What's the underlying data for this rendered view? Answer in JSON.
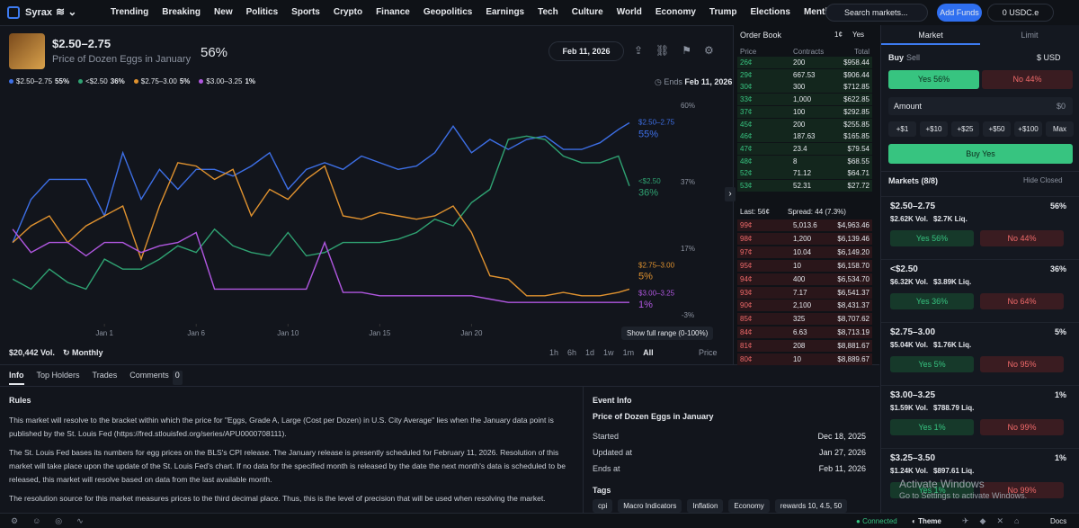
{
  "nav": {
    "brand": "Syrax",
    "items": [
      "Trending",
      "Breaking",
      "New",
      "Politics",
      "Sports",
      "Crypto",
      "Finance",
      "Geopolitics",
      "Earnings",
      "Tech",
      "Culture",
      "World",
      "Economy",
      "Trump",
      "Elections",
      "Mentions"
    ],
    "search": "Search markets...",
    "add_funds": "Add Funds",
    "balance": "0 USDC.e"
  },
  "market": {
    "title": "$2.50–2.75",
    "subtitle": "Price of Dozen Eggs in January",
    "probability": "56%",
    "date": "Feb 11, 2026",
    "ends_label": "Ends",
    "ends_date": "Feb 11, 2026"
  },
  "chart_data": {
    "type": "line",
    "x": [
      0,
      1,
      2,
      3,
      4,
      5,
      6,
      7,
      8,
      9,
      10,
      11,
      12,
      13,
      14,
      15,
      16,
      17,
      18,
      19,
      20,
      21,
      22,
      23,
      24,
      25,
      26,
      27,
      28,
      29,
      30,
      31,
      32,
      33,
      33.6
    ],
    "xlim": [
      -0.2,
      33.6
    ],
    "xticks": [
      {
        "value": 5,
        "label": "Jan 1"
      },
      {
        "value": 10,
        "label": "Jan 6"
      },
      {
        "value": 15,
        "label": "Jan 10"
      },
      {
        "value": 20,
        "label": "Jan 15"
      },
      {
        "value": 25,
        "label": "Jan 20"
      }
    ],
    "ylim": [
      -3,
      60
    ],
    "yticks": [
      {
        "value": 60,
        "label": "60%"
      },
      {
        "value": 37,
        "label": "37%"
      },
      {
        "value": 17,
        "label": "17%"
      },
      {
        "value": -3,
        "label": "-3%"
      }
    ],
    "grid": false,
    "series": [
      {
        "name": "$2.50–2.75",
        "color": "#3d6fe6",
        "end_label": "55%",
        "values": [
          19,
          32,
          38,
          38,
          38,
          27,
          46,
          32,
          41,
          35,
          41,
          41,
          39,
          42,
          46,
          35,
          41,
          43,
          41,
          45,
          43,
          41,
          42,
          46,
          54,
          46,
          50,
          47,
          50,
          51,
          47,
          47,
          49,
          53,
          55
        ]
      },
      {
        "name": "<$2.50",
        "color": "#2fa272",
        "end_label": "36%",
        "values": [
          8,
          5,
          11,
          7,
          5,
          14,
          11,
          11,
          14,
          18,
          16,
          23,
          18,
          16,
          15,
          22,
          15,
          16,
          19,
          19,
          19,
          20,
          22,
          26,
          24,
          31,
          35,
          50,
          51,
          50,
          45,
          43,
          43,
          45,
          36
        ]
      },
      {
        "name": "$2.75–3.00",
        "color": "#e0922f",
        "end_label": "5%",
        "values": [
          19,
          24,
          27,
          19,
          24,
          27,
          30,
          14,
          30,
          43,
          42,
          38,
          41,
          27,
          35,
          32,
          38,
          42,
          27,
          26,
          28,
          27,
          26,
          27,
          30,
          22,
          9,
          8,
          3,
          3,
          4,
          3,
          3,
          4,
          5
        ]
      },
      {
        "name": "$3.00–3.25",
        "color": "#b057e0",
        "end_label": "1%",
        "values": [
          23,
          16,
          19,
          19,
          15,
          19,
          19,
          16,
          18,
          19,
          22,
          5,
          5,
          5,
          5,
          5,
          5,
          19,
          4,
          4,
          3,
          3,
          3,
          3,
          3,
          3,
          2,
          1,
          1,
          1,
          1,
          1,
          1,
          1,
          1
        ]
      }
    ]
  },
  "chart_footer": {
    "volume": "$20,442 Vol.",
    "period": "Monthly",
    "ranges": [
      "1h",
      "6h",
      "1d",
      "1w",
      "1m",
      "All"
    ],
    "price_toggle": "Price",
    "tooltip": "Show full range (0-100%)"
  },
  "tabs": {
    "items": [
      "Info",
      "Top Holders",
      "Trades",
      "Comments"
    ],
    "comments_count": "0"
  },
  "rules": {
    "heading": "Rules",
    "paragraphs": [
      "This market will resolve to the bracket within which the price for \"Eggs, Grade A, Large (Cost per Dozen) in U.S. City Average\" lies when the January data point is published by the St. Louis Fed (https://fred.stlouisfed.org/series/APU0000708111).",
      "The St. Louis Fed bases its numbers for egg prices on the BLS's CPI release. The January release is presently scheduled for February 11, 2026. Resolution of this market will take place upon the update of the St. Louis Fed's chart. If no data for the specified month is released by the date the next month's data is scheduled to be released, this market will resolve based on data from the last available month.",
      "The resolution source for this market measures prices to the third decimal place. Thus, this is the level of precision that will be used when resolving the market."
    ]
  },
  "event_info": {
    "heading": "Event Info",
    "name": "Price of Dozen Eggs in January",
    "rows": [
      [
        "Started",
        "Dec 18, 2025"
      ],
      [
        "Updated at",
        "Jan 27, 2026"
      ],
      [
        "Ends at",
        "Feb 11, 2026"
      ]
    ],
    "tags_heading": "Tags",
    "tags": [
      "cpi",
      "Macro Indicators",
      "Inflation",
      "Economy",
      "rewards 10, 4.5, 50"
    ]
  },
  "order_book": {
    "title": "Order Book",
    "tick": "1¢",
    "side": "Yes",
    "columns": [
      "Price",
      "Contracts",
      "Total"
    ],
    "asks": [
      [
        "26¢",
        "200",
        "$958.44"
      ],
      [
        "29¢",
        "667.53",
        "$906.44"
      ],
      [
        "30¢",
        "300",
        "$712.85"
      ],
      [
        "33¢",
        "1,000",
        "$622.85"
      ],
      [
        "37¢",
        "100",
        "$292.85"
      ],
      [
        "45¢",
        "200",
        "$255.85"
      ],
      [
        "46¢",
        "187.63",
        "$165.85"
      ],
      [
        "47¢",
        "23.4",
        "$79.54"
      ],
      [
        "48¢",
        "8",
        "$68.55"
      ],
      [
        "52¢",
        "71.12",
        "$64.71"
      ],
      [
        "53¢",
        "52.31",
        "$27.72"
      ]
    ],
    "last": "Last: 56¢",
    "spread": "Spread: 44 (7.3%)",
    "bids": [
      [
        "99¢",
        "5,013.6",
        "$4,963.46"
      ],
      [
        "98¢",
        "1,200",
        "$6,139.46"
      ],
      [
        "97¢",
        "10.04",
        "$6,149.20"
      ],
      [
        "95¢",
        "10",
        "$6,158.70"
      ],
      [
        "94¢",
        "400",
        "$6,534.70"
      ],
      [
        "93¢",
        "7.17",
        "$6,541.37"
      ],
      [
        "90¢",
        "2,100",
        "$8,431.37"
      ],
      [
        "85¢",
        "325",
        "$8,707.62"
      ],
      [
        "84¢",
        "6.63",
        "$8,713.19"
      ],
      [
        "81¢",
        "208",
        "$8,881.67"
      ],
      [
        "80¢",
        "10",
        "$8,889.67"
      ]
    ]
  },
  "trade": {
    "tabs": [
      "Market",
      "Limit"
    ],
    "buy": "Buy",
    "sell": "Sell",
    "currency": "$ USD",
    "yes": "Yes 56%",
    "no": "No 44%",
    "amount_label": "Amount",
    "amount_value": "$0",
    "quick": [
      "+$1",
      "+$10",
      "+$25",
      "+$50",
      "+$100",
      "Max"
    ],
    "submit": "Buy Yes",
    "markets_heading": "Markets (8/8)",
    "hide_closed": "Hide Closed",
    "markets": [
      {
        "name": "$2.50–2.75",
        "prob": "56%",
        "volume": "$2.62K Vol.",
        "liquidity": "$2.7K Liq.",
        "yes": "Yes 56%",
        "no": "No 44%"
      },
      {
        "name": "<$2.50",
        "prob": "36%",
        "volume": "$6.32K Vol.",
        "liquidity": "$3.89K Liq.",
        "yes": "Yes 36%",
        "no": "No 64%"
      },
      {
        "name": "$2.75–3.00",
        "prob": "5%",
        "volume": "$5.04K Vol.",
        "liquidity": "$1.76K Liq.",
        "yes": "Yes 5%",
        "no": "No 95%"
      },
      {
        "name": "$3.00–3.25",
        "prob": "1%",
        "volume": "$1.59K Vol.",
        "liquidity": "$788.79 Liq.",
        "yes": "Yes 1%",
        "no": "No 99%"
      },
      {
        "name": "$3.25–3.50",
        "prob": "1%",
        "volume": "$1.24K Vol.",
        "liquidity": "$897.61 Liq.",
        "yes": "Yes 1%",
        "no": "No 99%"
      }
    ]
  },
  "footer": {
    "status": "Connected",
    "theme": "Theme",
    "docs": "Docs"
  },
  "watermark": {
    "title": "Activate Windows",
    "subtitle": "Go to Settings to activate Windows."
  }
}
